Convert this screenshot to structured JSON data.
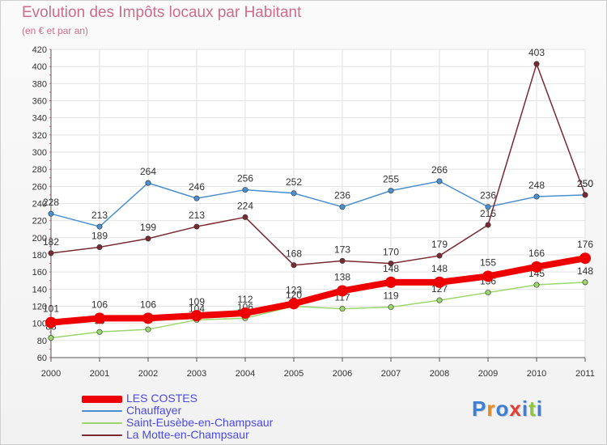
{
  "header": {
    "title": "Evolution des Impôts locaux par Habitant",
    "subtitle": "(en € et par an)"
  },
  "logo": {
    "text": "Proxiti",
    "letters": [
      {
        "ch": "P",
        "color": "#3b7fd6"
      },
      {
        "ch": "r",
        "color": "#e58a23"
      },
      {
        "ch": "o",
        "color": "#3b7fd6"
      },
      {
        "ch": "x",
        "color": "#e53d2f"
      },
      {
        "ch": "i",
        "color": "#3b7fd6"
      },
      {
        "ch": "t",
        "color": "#8cc63f"
      },
      {
        "ch": "i",
        "color": "#3b7fd6"
      }
    ]
  },
  "chart_data": {
    "type": "line",
    "title": "Evolution des Impôts locaux par Habitant",
    "subtitle": "(en € et par an)",
    "xlabel": "",
    "ylabel": "",
    "x": [
      2000,
      2001,
      2002,
      2003,
      2004,
      2005,
      2006,
      2007,
      2008,
      2009,
      2010,
      2011
    ],
    "ylim": [
      60,
      420
    ],
    "yticks": [
      60,
      80,
      100,
      120,
      140,
      160,
      180,
      200,
      220,
      240,
      260,
      280,
      300,
      320,
      340,
      360,
      380,
      400,
      420
    ],
    "grid": true,
    "legend_position": "bottom-left",
    "series": [
      {
        "name": "Chauffayer",
        "color": "#4a8fd0",
        "values": [
          228,
          213,
          264,
          246,
          256,
          252,
          236,
          255,
          266,
          236,
          248,
          250
        ]
      },
      {
        "name": "Saint-Eusèbe-en-Champsaur",
        "color": "#9ad66b",
        "values": [
          83,
          90,
          93,
          104,
          106,
          120,
          117,
          119,
          127,
          136,
          145,
          148
        ]
      },
      {
        "name": "La Motte-en-Champsaur",
        "color": "#7a2a33",
        "values": [
          182,
          189,
          199,
          213,
          224,
          168,
          173,
          170,
          179,
          215,
          403,
          250
        ]
      },
      {
        "name": "LES COSTES",
        "color": "#ee0000",
        "values": [
          101,
          106,
          106,
          109,
          112,
          123,
          138,
          148,
          148,
          155,
          166,
          176
        ]
      }
    ],
    "legend_order": [
      "LES COSTES",
      "Chauffayer",
      "Saint-Eusèbe-en-Champsaur",
      "La Motte-en-Champsaur"
    ]
  }
}
